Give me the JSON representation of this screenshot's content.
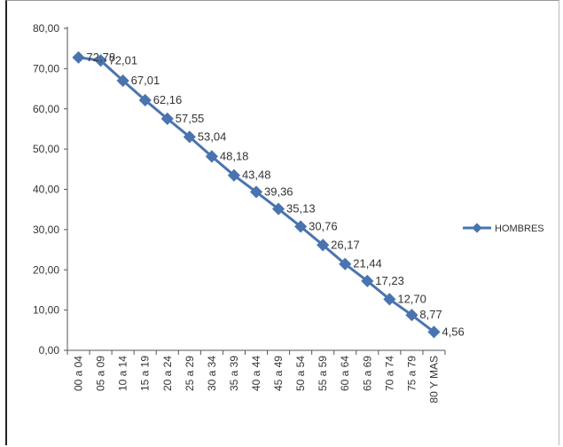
{
  "chart_data": {
    "type": "line",
    "categories": [
      "00 a 04",
      "05 a 09",
      "10 a 14",
      "15 a 19",
      "20 a 24",
      "25 a 29",
      "30 a 34",
      "35 a 39",
      "40 a 44",
      "45 a 49",
      "50 a 54",
      "55 a 59",
      "60 a 64",
      "65 a 69",
      "70 a 74",
      "75 a 79",
      "80 Y MAS"
    ],
    "series": [
      {
        "name": "HOMBRES",
        "values": [
          72.78,
          72.01,
          67.01,
          62.16,
          57.55,
          53.04,
          48.18,
          43.48,
          39.36,
          35.13,
          30.76,
          26.17,
          21.44,
          17.23,
          12.7,
          8.77,
          4.56
        ],
        "labels": [
          "72,78",
          "72,01",
          "67,01",
          "62,16",
          "57,55",
          "53,04",
          "48,18",
          "43,48",
          "39,36",
          "35,13",
          "30,76",
          "26,17",
          "21,44",
          "17,23",
          "12,70",
          "8,77",
          "4,56"
        ],
        "color": "#4a74b0"
      }
    ],
    "yticks": [
      "0,00",
      "10,00",
      "20,00",
      "30,00",
      "40,00",
      "50,00",
      "60,00",
      "70,00",
      "80,00"
    ],
    "ylim": [
      0,
      80
    ],
    "grid": false,
    "legend_position": "right"
  }
}
